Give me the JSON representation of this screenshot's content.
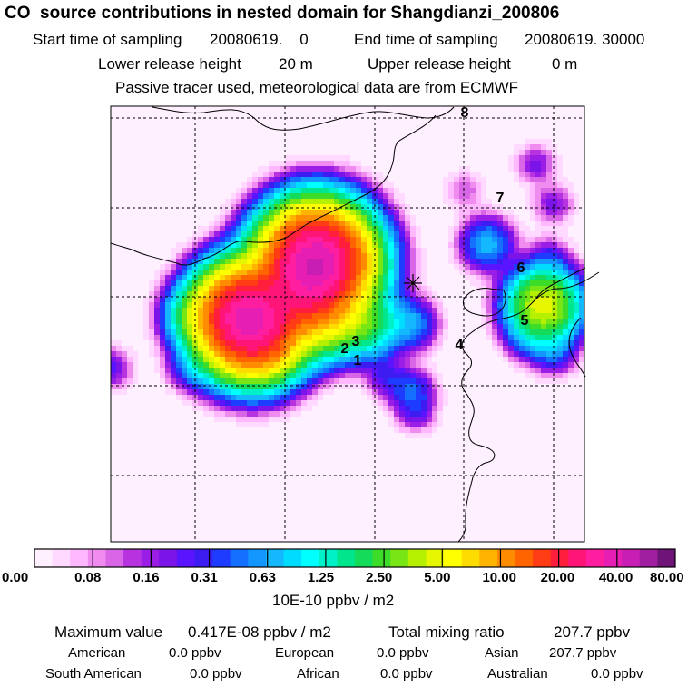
{
  "header": {
    "title": "CO  source contributions in nested domain for Shangdianzi_200806",
    "start_label": "Start time of sampling",
    "start_value": "20080619.    0",
    "end_label": "End time of sampling",
    "end_value": "20080619. 30000",
    "lower_label": "Lower release height",
    "lower_value": "20 m",
    "upper_label": "Upper release height",
    "upper_value": "0 m",
    "note": "Passive tracer used, meteorological data are from ECMWF"
  },
  "chart_data": {
    "type": "heatmap",
    "title": "CO  source contributions in nested domain for Shangdianzi_200806",
    "grid": "dashed",
    "map_labels": [
      "1",
      "2",
      "3",
      "4",
      "5",
      "6",
      "7",
      "8"
    ],
    "station_marker": "receptor (cross)",
    "colorbar": {
      "tick_labels": [
        "0.00",
        "0.08",
        "0.16",
        "0.31",
        "0.63",
        "1.25",
        "2.50",
        "5.00",
        "10.00",
        "20.00",
        "40.00",
        "80.00"
      ],
      "unit": "10E-10 ppbv / m2",
      "colors": [
        "#fff0ff",
        "#ffd9ff",
        "#ffb8ff",
        "#f08cf0",
        "#d966e6",
        "#b833e0",
        "#9a1ee6",
        "#7a14e8",
        "#5a14ff",
        "#3c1cf0",
        "#1e3cff",
        "#1470ff",
        "#1496ff",
        "#14b8ff",
        "#00dcff",
        "#00ffff",
        "#00f0c8",
        "#00e68c",
        "#14dc5a",
        "#3cdc28",
        "#78e614",
        "#b4f000",
        "#e6f500",
        "#ffff00",
        "#ffdc00",
        "#ffb400",
        "#ff8c00",
        "#ff6400",
        "#ff3c14",
        "#ff1e3c",
        "#ff1478",
        "#ff1ea0",
        "#e61eb4",
        "#c81eb4",
        "#a01ea0",
        "#6e1478"
      ]
    },
    "hotspots": [
      {
        "lon": 117.12,
        "lat": 40.65,
        "value": 42.0
      },
      {
        "lon": 116.4,
        "lat": 39.95,
        "value": 30.0
      },
      {
        "lon": 116.25,
        "lat": 40.1,
        "value": 12.0
      },
      {
        "lon": 117.0,
        "lat": 40.3,
        "value": 8.0
      },
      {
        "lon": 117.25,
        "lat": 39.95,
        "value": 3.0
      },
      {
        "lon": 117.7,
        "lat": 39.95,
        "value": 2.0
      },
      {
        "lon": 115.75,
        "lat": 40.05,
        "value": 1.2
      },
      {
        "lon": 116.6,
        "lat": 39.7,
        "value": 1.0
      },
      {
        "lon": 118.2,
        "lat": 39.95,
        "value": 0.6
      },
      {
        "lon": 119.05,
        "lat": 40.85,
        "value": 0.7
      },
      {
        "lon": 119.7,
        "lat": 40.15,
        "value": 3.5
      },
      {
        "lon": 119.65,
        "lat": 40.2,
        "value": 1.5
      },
      {
        "lon": 115.7,
        "lat": 39.45,
        "value": 0.3
      },
      {
        "lon": 114.8,
        "lat": 39.45,
        "value": 0.25
      },
      {
        "lon": 118.2,
        "lat": 39.2,
        "value": 0.4
      },
      {
        "lon": 117.9,
        "lat": 39.35,
        "value": 0.25
      },
      {
        "lon": 118.25,
        "lat": 38.95,
        "value": 0.2
      },
      {
        "lon": 119.6,
        "lat": 41.75,
        "value": 0.2
      },
      {
        "lon": 119.8,
        "lat": 41.3,
        "value": 0.2
      },
      {
        "lon": 119.75,
        "lat": 40.7,
        "value": 0.2
      },
      {
        "lon": 118.8,
        "lat": 41.45,
        "value": 0.12
      },
      {
        "lon": 119.5,
        "lat": 39.8,
        "value": 0.3
      },
      {
        "lon": 119.8,
        "lat": 39.65,
        "value": 0.4
      }
    ]
  },
  "stats": {
    "max_label": "Maximum value",
    "max_value": "0.417E-08 ppbv / m2",
    "total_label": "Total mixing ratio",
    "total_value": "207.7 ppbv",
    "regions": [
      {
        "name": "American",
        "value": "0.0 ppbv"
      },
      {
        "name": "European",
        "value": "0.0 ppbv"
      },
      {
        "name": "Asian",
        "value": "207.7 ppbv"
      },
      {
        "name": "South American",
        "value": "0.0 ppbv"
      },
      {
        "name": "African",
        "value": "0.0 ppbv"
      },
      {
        "name": "Australian",
        "value": "0.0 ppbv"
      }
    ]
  }
}
